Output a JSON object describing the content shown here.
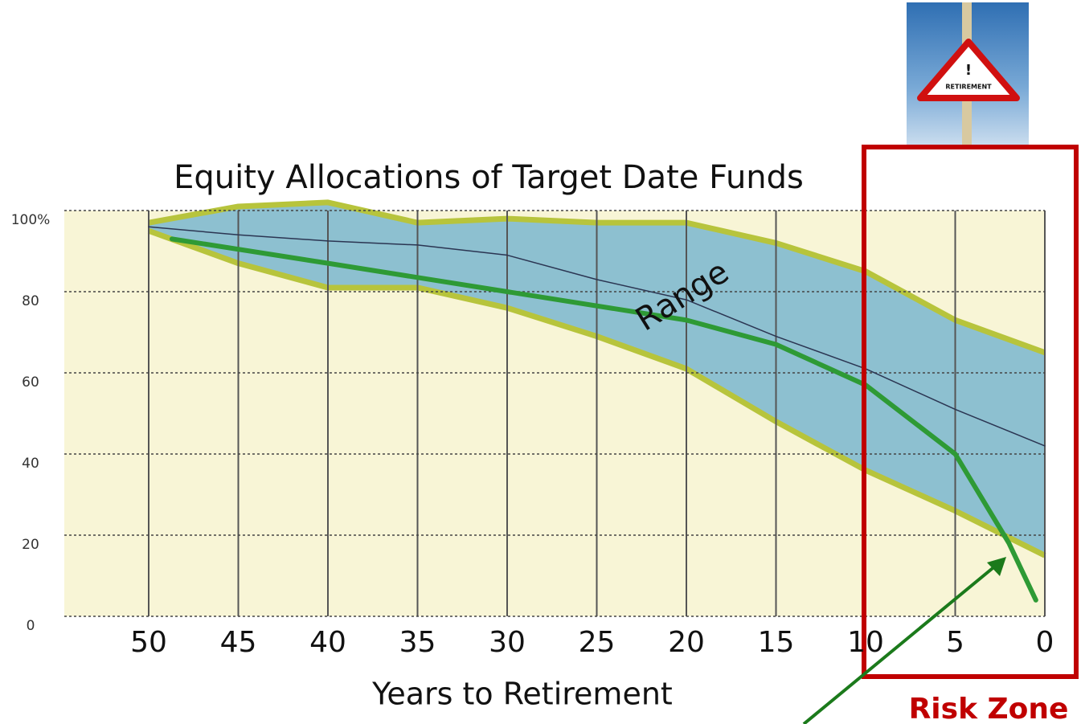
{
  "chart_data": {
    "type": "range-line",
    "title": "Equity Allocations of Target Date Funds",
    "x_label": "Years to Retirement",
    "x": [
      50,
      45,
      40,
      35,
      30,
      25,
      20,
      15,
      10,
      5,
      0
    ],
    "xlim": [
      55,
      0
    ],
    "xticks": [
      50,
      45,
      40,
      35,
      30,
      25,
      20,
      15,
      10,
      5,
      0
    ],
    "ylim": [
      0,
      100
    ],
    "yticks": [
      0,
      20,
      40,
      60,
      80,
      {
        "value": 100,
        "label": "100%"
      }
    ],
    "grid": true,
    "range": {
      "upper": [
        97,
        101,
        102,
        97,
        98,
        97,
        97,
        92,
        85,
        73,
        65
      ],
      "lower": [
        95,
        87,
        81,
        81,
        76,
        69,
        61,
        48,
        36,
        26,
        15
      ],
      "color": "#8dc0d0",
      "edge_color": "#b7c43c"
    },
    "series": [
      {
        "color": "#2b3552",
        "x": [
          50,
          45,
          40,
          35,
          30,
          25,
          20,
          15,
          10,
          5,
          0
        ],
        "values": [
          96,
          94,
          92.5,
          91.5,
          89,
          83,
          78,
          69,
          61,
          51,
          42
        ],
        "width": 1.5
      },
      {
        "color": "#2e9a35",
        "x": [
          48.7,
          40,
          30,
          20,
          15,
          10,
          5,
          2,
          0.5
        ],
        "values": [
          93,
          87,
          80,
          73,
          67,
          57,
          40,
          18,
          4
        ],
        "width": 6
      }
    ],
    "annotations": [
      "Range",
      "Risk Zone"
    ],
    "sign": {
      "symbol": "!",
      "label": "RETIREMENT"
    }
  }
}
